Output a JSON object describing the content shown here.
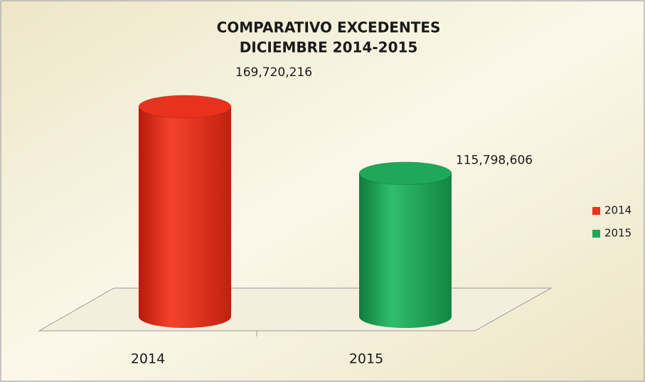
{
  "chart_data": {
    "type": "bar3d",
    "title": [
      "COMPARATIVO EXCEDENTES",
      "DICIEMBRE 2014-2015"
    ],
    "categories": [
      "2014",
      "2015"
    ],
    "values": [
      169720216,
      115798606
    ],
    "value_labels": [
      "169,720,216",
      "115,798,606"
    ],
    "colors": [
      "#e8321e",
      "#1fa85a"
    ],
    "legend": "right"
  }
}
